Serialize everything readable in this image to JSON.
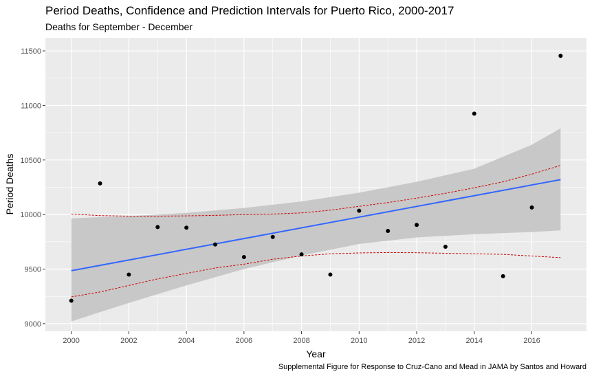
{
  "chart_data": {
    "type": "scatter",
    "title": "Period Deaths, Confidence and Prediction Intervals for Puerto Rico, 2000-2017",
    "subtitle": "Deaths for September - December",
    "xlabel": "Year",
    "ylabel": "Period Deaths",
    "caption": "Supplemental Figure for Response to Cruz-Cano and Mead in JAMA by Santos and Howard",
    "xlim": [
      1999.1,
      2017.9
    ],
    "ylim": [
      8930,
      11620
    ],
    "x_ticks": [
      2000,
      2002,
      2004,
      2006,
      2008,
      2010,
      2012,
      2014,
      2016
    ],
    "y_ticks": [
      9000,
      9500,
      10000,
      10500,
      11000,
      11500
    ],
    "grid": true,
    "points": {
      "x": [
        2000,
        2001,
        2002,
        2003,
        2004,
        2005,
        2006,
        2007,
        2008,
        2009,
        2010,
        2011,
        2012,
        2013,
        2014,
        2015,
        2016,
        2017
      ],
      "y": [
        9210,
        10285,
        9450,
        9885,
        9880,
        9725,
        9610,
        9795,
        9635,
        9450,
        10035,
        9850,
        9905,
        9705,
        10925,
        9435,
        10065,
        11455
      ]
    },
    "fit_line": {
      "name": "Linear fit",
      "x": [
        2000,
        2017
      ],
      "y": [
        9485,
        10320
      ],
      "color": "#3366FF"
    },
    "confidence_band": {
      "name": "Confidence interval",
      "x": [
        2000,
        2002,
        2004,
        2006,
        2008,
        2010,
        2012,
        2014,
        2016,
        2017
      ],
      "lower": [
        9020,
        9190,
        9350,
        9500,
        9625,
        9730,
        9790,
        9820,
        9840,
        9855
      ],
      "upper": [
        9965,
        9985,
        10015,
        10060,
        10120,
        10200,
        10300,
        10420,
        10640,
        10790
      ],
      "color": "#C8C8C8"
    },
    "prediction_interval": {
      "name": "Prediction interval",
      "x": [
        2000,
        2001,
        2002,
        2003,
        2004,
        2005,
        2006,
        2007,
        2008,
        2009,
        2010,
        2011,
        2012,
        2013,
        2014,
        2015,
        2016,
        2017
      ],
      "lower": [
        9245,
        9290,
        9350,
        9410,
        9460,
        9510,
        9545,
        9590,
        9620,
        9640,
        9648,
        9652,
        9650,
        9645,
        9640,
        9635,
        9620,
        9605
      ],
      "upper": [
        10005,
        9990,
        9985,
        9985,
        9988,
        9992,
        10000,
        10005,
        10015,
        10040,
        10075,
        10110,
        10150,
        10195,
        10245,
        10300,
        10370,
        10450
      ],
      "color": "#CC0000"
    },
    "colors": {
      "panel_background": "#EBEBEB",
      "grid": "#FFFFFF",
      "points": "#000000",
      "axis_text": "#4D4D4D"
    }
  }
}
